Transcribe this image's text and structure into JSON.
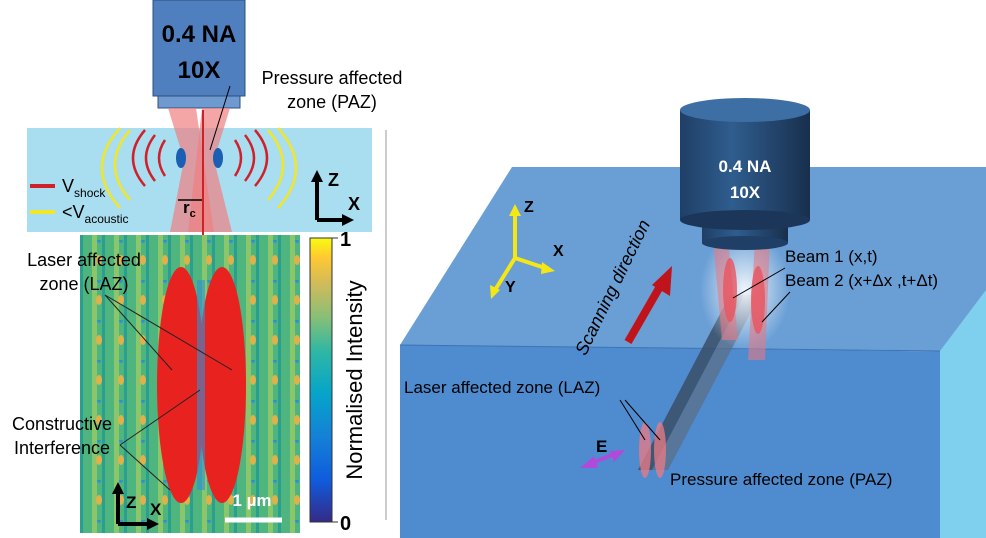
{
  "left_panel": {
    "objective": {
      "na": "0.4 NA",
      "mag": "10X"
    },
    "paz_label": [
      "Pressure affected",
      "zone (PAZ)"
    ],
    "legend": {
      "shock": {
        "symbol": "V",
        "sub": "shock"
      },
      "acoustic": {
        "symbol": "<V",
        "sub": "acoustic"
      }
    },
    "rc": {
      "symbol": "r",
      "sub": "c"
    },
    "axes_top": {
      "z": "Z",
      "x": "X"
    },
    "laz_label": [
      "Laser affected",
      "zone (LAZ)"
    ],
    "ci_label": [
      "Constructive",
      "Interference"
    ],
    "axes_bottom": {
      "z": "Z",
      "x": "X"
    },
    "scale_bar": "1 µm",
    "colorbar": {
      "label": "Normalised Intensity",
      "ticks": [
        0,
        1
      ]
    }
  },
  "right_panel": {
    "objective": {
      "na": "0.4 NA",
      "mag": "10X"
    },
    "axes": {
      "z": "Z",
      "x": "X",
      "y": "Y"
    },
    "scanning": "Scanning direction",
    "beam1": "Beam 1 (x,t)",
    "beam2": "Beam 2 (x+Δx ,t+Δt)",
    "laz_label": "Laser affected zone (LAZ)",
    "e_label": "E",
    "paz_label": "Pressure affected zone (PAZ)"
  }
}
